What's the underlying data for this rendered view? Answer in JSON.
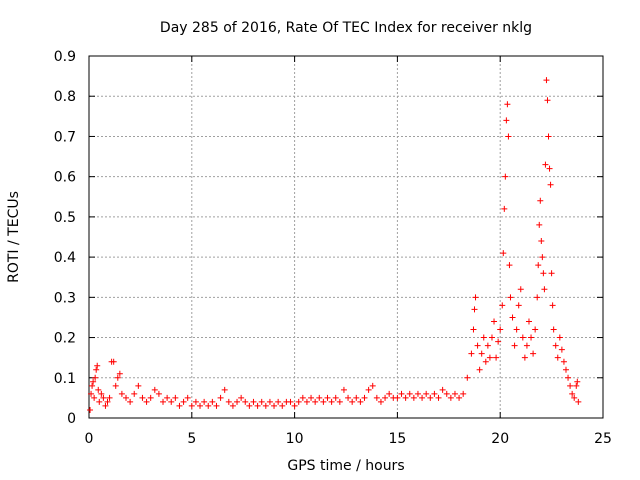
{
  "chart_data": {
    "type": "scatter",
    "title": "Day 285 of 2016, Rate Of TEC Index for receiver nklg",
    "xlabel": "GPS time / hours",
    "ylabel": "ROTI / TECUs",
    "xlim": [
      0,
      25
    ],
    "ylim": [
      0,
      0.9
    ],
    "x_ticks": [
      "0",
      "5",
      "10",
      "15",
      "20",
      "25"
    ],
    "y_ticks": [
      "0",
      "0.1",
      "0.2",
      "0.3",
      "0.4",
      "0.5",
      "0.6",
      "0.7",
      "0.8",
      "0.9"
    ],
    "x_tick_values": [
      0,
      5,
      10,
      15,
      20,
      25
    ],
    "y_tick_values": [
      0,
      0.1,
      0.2,
      0.3,
      0.4,
      0.5,
      0.6,
      0.7,
      0.8,
      0.9
    ],
    "grid": true,
    "marker": "plus",
    "series_color": "#ff0000",
    "series": [
      {
        "name": "ROTI",
        "points": [
          [
            0.05,
            0.02
          ],
          [
            0.1,
            0.06
          ],
          [
            0.15,
            0.08
          ],
          [
            0.2,
            0.09
          ],
          [
            0.25,
            0.05
          ],
          [
            0.3,
            0.1
          ],
          [
            0.35,
            0.12
          ],
          [
            0.4,
            0.13
          ],
          [
            0.45,
            0.07
          ],
          [
            0.5,
            0.04
          ],
          [
            0.6,
            0.06
          ],
          [
            0.7,
            0.05
          ],
          [
            0.8,
            0.03
          ],
          [
            0.9,
            0.04
          ],
          [
            1.0,
            0.05
          ],
          [
            1.1,
            0.14
          ],
          [
            1.2,
            0.14
          ],
          [
            1.3,
            0.08
          ],
          [
            1.4,
            0.1
          ],
          [
            1.5,
            0.11
          ],
          [
            1.6,
            0.06
          ],
          [
            1.8,
            0.05
          ],
          [
            2.0,
            0.04
          ],
          [
            2.2,
            0.06
          ],
          [
            2.4,
            0.08
          ],
          [
            2.6,
            0.05
          ],
          [
            2.8,
            0.04
          ],
          [
            3.0,
            0.05
          ],
          [
            3.2,
            0.07
          ],
          [
            3.4,
            0.06
          ],
          [
            3.6,
            0.04
          ],
          [
            3.8,
            0.05
          ],
          [
            4.0,
            0.04
          ],
          [
            4.2,
            0.05
          ],
          [
            4.4,
            0.03
          ],
          [
            4.6,
            0.04
          ],
          [
            4.8,
            0.05
          ],
          [
            5.0,
            0.03
          ],
          [
            5.2,
            0.04
          ],
          [
            5.4,
            0.03
          ],
          [
            5.6,
            0.04
          ],
          [
            5.8,
            0.03
          ],
          [
            6.0,
            0.04
          ],
          [
            6.2,
            0.03
          ],
          [
            6.4,
            0.05
          ],
          [
            6.6,
            0.07
          ],
          [
            6.8,
            0.04
          ],
          [
            7.0,
            0.03
          ],
          [
            7.2,
            0.04
          ],
          [
            7.4,
            0.05
          ],
          [
            7.6,
            0.04
          ],
          [
            7.8,
            0.03
          ],
          [
            8.0,
            0.04
          ],
          [
            8.2,
            0.03
          ],
          [
            8.4,
            0.04
          ],
          [
            8.6,
            0.03
          ],
          [
            8.8,
            0.04
          ],
          [
            9.0,
            0.03
          ],
          [
            9.2,
            0.04
          ],
          [
            9.4,
            0.03
          ],
          [
            9.6,
            0.04
          ],
          [
            9.8,
            0.04
          ],
          [
            10.0,
            0.03
          ],
          [
            10.2,
            0.04
          ],
          [
            10.4,
            0.05
          ],
          [
            10.6,
            0.04
          ],
          [
            10.8,
            0.05
          ],
          [
            11.0,
            0.04
          ],
          [
            11.2,
            0.05
          ],
          [
            11.4,
            0.04
          ],
          [
            11.6,
            0.05
          ],
          [
            11.8,
            0.04
          ],
          [
            12.0,
            0.05
          ],
          [
            12.2,
            0.04
          ],
          [
            12.4,
            0.07
          ],
          [
            12.6,
            0.05
          ],
          [
            12.8,
            0.04
          ],
          [
            13.0,
            0.05
          ],
          [
            13.2,
            0.04
          ],
          [
            13.4,
            0.05
          ],
          [
            13.6,
            0.07
          ],
          [
            13.8,
            0.08
          ],
          [
            14.0,
            0.05
          ],
          [
            14.2,
            0.04
          ],
          [
            14.4,
            0.05
          ],
          [
            14.6,
            0.06
          ],
          [
            14.8,
            0.05
          ],
          [
            15.0,
            0.05
          ],
          [
            15.2,
            0.06
          ],
          [
            15.4,
            0.05
          ],
          [
            15.6,
            0.06
          ],
          [
            15.8,
            0.05
          ],
          [
            16.0,
            0.06
          ],
          [
            16.2,
            0.05
          ],
          [
            16.4,
            0.06
          ],
          [
            16.6,
            0.05
          ],
          [
            16.8,
            0.06
          ],
          [
            17.0,
            0.05
          ],
          [
            17.2,
            0.07
          ],
          [
            17.4,
            0.06
          ],
          [
            17.6,
            0.05
          ],
          [
            17.8,
            0.06
          ],
          [
            18.0,
            0.05
          ],
          [
            18.2,
            0.06
          ],
          [
            18.4,
            0.1
          ],
          [
            18.6,
            0.16
          ],
          [
            18.7,
            0.22
          ],
          [
            18.75,
            0.27
          ],
          [
            18.8,
            0.3
          ],
          [
            18.9,
            0.18
          ],
          [
            19.0,
            0.12
          ],
          [
            19.1,
            0.16
          ],
          [
            19.2,
            0.2
          ],
          [
            19.3,
            0.14
          ],
          [
            19.4,
            0.18
          ],
          [
            19.5,
            0.15
          ],
          [
            19.6,
            0.2
          ],
          [
            19.7,
            0.24
          ],
          [
            19.8,
            0.15
          ],
          [
            19.9,
            0.19
          ],
          [
            20.0,
            0.22
          ],
          [
            20.1,
            0.28
          ],
          [
            20.15,
            0.41
          ],
          [
            20.2,
            0.52
          ],
          [
            20.25,
            0.6
          ],
          [
            20.3,
            0.74
          ],
          [
            20.35,
            0.78
          ],
          [
            20.4,
            0.7
          ],
          [
            20.45,
            0.38
          ],
          [
            20.5,
            0.3
          ],
          [
            20.6,
            0.25
          ],
          [
            20.7,
            0.18
          ],
          [
            20.8,
            0.22
          ],
          [
            20.9,
            0.28
          ],
          [
            21.0,
            0.32
          ],
          [
            21.1,
            0.2
          ],
          [
            21.2,
            0.15
          ],
          [
            21.3,
            0.18
          ],
          [
            21.4,
            0.24
          ],
          [
            21.5,
            0.2
          ],
          [
            21.6,
            0.16
          ],
          [
            21.7,
            0.22
          ],
          [
            21.8,
            0.3
          ],
          [
            21.85,
            0.38
          ],
          [
            21.9,
            0.48
          ],
          [
            21.95,
            0.54
          ],
          [
            22.0,
            0.44
          ],
          [
            22.05,
            0.4
          ],
          [
            22.1,
            0.36
          ],
          [
            22.15,
            0.32
          ],
          [
            22.2,
            0.63
          ],
          [
            22.25,
            0.84
          ],
          [
            22.3,
            0.79
          ],
          [
            22.35,
            0.7
          ],
          [
            22.4,
            0.62
          ],
          [
            22.45,
            0.58
          ],
          [
            22.5,
            0.36
          ],
          [
            22.55,
            0.28
          ],
          [
            22.6,
            0.22
          ],
          [
            22.7,
            0.18
          ],
          [
            22.8,
            0.15
          ],
          [
            22.9,
            0.2
          ],
          [
            23.0,
            0.17
          ],
          [
            23.1,
            0.14
          ],
          [
            23.2,
            0.12
          ],
          [
            23.3,
            0.1
          ],
          [
            23.4,
            0.08
          ],
          [
            23.5,
            0.06
          ],
          [
            23.6,
            0.05
          ],
          [
            23.7,
            0.08
          ],
          [
            23.75,
            0.09
          ],
          [
            23.8,
            0.04
          ]
        ]
      }
    ]
  }
}
